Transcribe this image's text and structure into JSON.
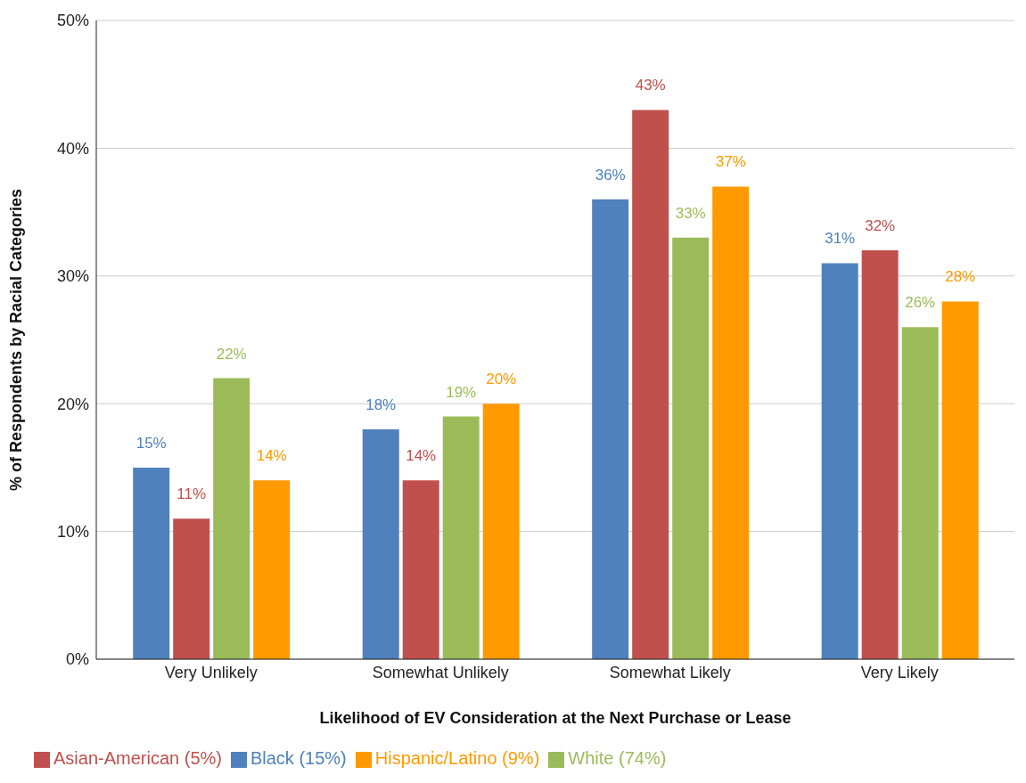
{
  "chart_data": {
    "type": "bar",
    "xlabel": "Likelihood of EV Consideration at the Next Purchase or Lease",
    "ylabel": "% of Respondents by Racial Categories",
    "categories": [
      "Very Unlikely",
      "Somewhat Unlikely",
      "Somewhat Likely",
      "Very Likely"
    ],
    "series": [
      {
        "name": "Black (15%)",
        "color": "#4f81bd",
        "values": [
          15,
          18,
          36,
          31
        ],
        "value_labels": [
          "15%",
          "18%",
          "36%",
          "31%"
        ]
      },
      {
        "name": "Asian-American (5%)",
        "color": "#c0504d",
        "values": [
          11,
          14,
          43,
          32
        ],
        "value_labels": [
          "11%",
          "14%",
          "43%",
          "32%"
        ]
      },
      {
        "name": "White (74%)",
        "color": "#9bbb59",
        "values": [
          22,
          19,
          33,
          26
        ],
        "value_labels": [
          "22%",
          "19%",
          "33%",
          "26%"
        ]
      },
      {
        "name": "Hispanic/Latino (9%)",
        "color": "#ff9900",
        "values": [
          14,
          20,
          37,
          28
        ],
        "value_labels": [
          "14%",
          "20%",
          "37%",
          "28%"
        ]
      }
    ],
    "ylim": [
      0,
      50
    ],
    "yticks": [
      {
        "value": 0,
        "label": "0%"
      },
      {
        "value": 10,
        "label": "10%"
      },
      {
        "value": 20,
        "label": "20%"
      },
      {
        "value": 30,
        "label": "30%"
      },
      {
        "value": 40,
        "label": "40%"
      },
      {
        "value": 50,
        "label": "50%"
      }
    ],
    "grid": "y",
    "legend": "bottom left"
  }
}
